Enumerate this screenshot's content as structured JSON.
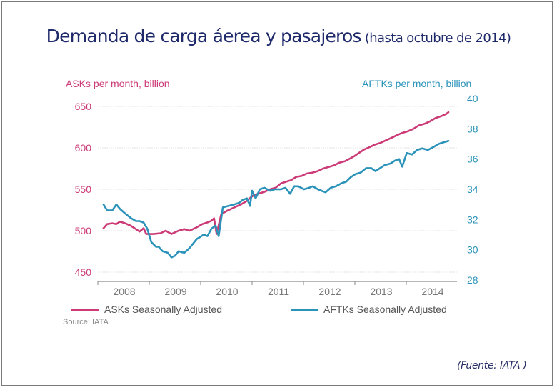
{
  "title": {
    "main": "Demanda de carga áerea y pasajeros",
    "sub": "(hasta octubre de 2014)"
  },
  "footer": {
    "chart_source": "Source: IATA",
    "fuente": "(Fuente: IATA )"
  },
  "colors": {
    "asks": "#cc3b77",
    "aftks": "#2b93b9",
    "title": "#1f2a6b",
    "grid": "#e6e6e6",
    "axis": "#8a8a8a"
  },
  "chart_data": {
    "type": "line",
    "title": "Demanda de carga áerea y pasajeros (hasta octubre de 2014)",
    "xlabel": "",
    "ylabel": "ASKs per month, billion",
    "y2label": "AFTKs per month, billion",
    "xlim": [
      2008,
      2014.85
    ],
    "ylim": [
      450,
      650
    ],
    "y2lim": [
      28,
      40
    ],
    "x_ticks": [
      2008,
      2009,
      2010,
      2011,
      2012,
      2013,
      2014
    ],
    "x_tick_labels": [
      "2008",
      "2009",
      "2010",
      "2011",
      "2012",
      "2013",
      "2014"
    ],
    "y_ticks": [
      650,
      600,
      550,
      500,
      450
    ],
    "y2_ticks": [
      40,
      38,
      36,
      34,
      32,
      30,
      28
    ],
    "grid": true,
    "legend": "bottom",
    "source": "Source: IATA",
    "series": [
      {
        "name": "ASKs Seasonally Adjusted",
        "axis": "left",
        "x": [
          2008.11,
          2008.18,
          2008.28,
          2008.36,
          2008.43,
          2008.53,
          2008.64,
          2008.74,
          2008.81,
          2008.89,
          2008.94,
          2009.08,
          2009.22,
          2009.32,
          2009.43,
          2009.57,
          2009.68,
          2009.78,
          2009.92,
          2010.03,
          2010.13,
          2010.21,
          2010.26,
          2010.31,
          2010.4,
          2010.51,
          2010.65,
          2010.79,
          2010.9,
          2010.97,
          2011.04,
          2011.14,
          2011.24,
          2011.35,
          2011.46,
          2011.56,
          2011.65,
          2011.76,
          2011.86,
          2011.96,
          2012.06,
          2012.17,
          2012.28,
          2012.38,
          2012.49,
          2012.6,
          2012.69,
          2012.81,
          2012.9,
          2012.99,
          2013.08,
          2013.18,
          2013.29,
          2013.39,
          2013.5,
          2013.6,
          2013.71,
          2013.81,
          2013.92,
          2014.03,
          2014.14,
          2014.24,
          2014.35,
          2014.46,
          2014.57,
          2014.67,
          2014.78,
          2014.82
        ],
        "values": [
          503,
          508,
          509,
          508,
          511,
          509,
          506,
          502,
          499,
          503,
          496,
          496,
          497,
          500,
          496,
          500,
          502,
          500,
          504,
          508,
          510,
          512,
          515,
          496,
          520,
          524,
          528,
          532,
          536,
          540,
          543,
          545,
          547,
          550,
          552,
          557,
          559,
          561,
          565,
          566,
          569,
          570,
          572,
          575,
          577,
          579,
          582,
          584,
          587,
          590,
          594,
          598,
          601,
          604,
          606,
          609,
          612,
          615,
          618,
          620,
          623,
          627,
          629,
          632,
          636,
          638,
          641,
          643
        ]
      },
      {
        "name": "AFTKs Seasonally Adjusted",
        "axis": "right",
        "x": [
          2008.11,
          2008.18,
          2008.28,
          2008.36,
          2008.43,
          2008.53,
          2008.64,
          2008.74,
          2008.81,
          2008.89,
          2008.96,
          2009.04,
          2009.13,
          2009.18,
          2009.26,
          2009.36,
          2009.43,
          2009.5,
          2009.57,
          2009.68,
          2009.78,
          2009.92,
          2010.06,
          2010.13,
          2010.21,
          2010.29,
          2010.35,
          2010.43,
          2010.54,
          2010.65,
          2010.75,
          2010.82,
          2010.9,
          2010.96,
          2011.0,
          2011.07,
          2011.15,
          2011.24,
          2011.35,
          2011.44,
          2011.56,
          2011.65,
          2011.74,
          2011.82,
          2011.9,
          2012.01,
          2012.11,
          2012.18,
          2012.28,
          2012.35,
          2012.43,
          2012.53,
          2012.63,
          2012.74,
          2012.83,
          2012.92,
          2013.01,
          2013.11,
          2013.22,
          2013.32,
          2013.4,
          2013.49,
          2013.58,
          2013.69,
          2013.78,
          2013.86,
          2013.92,
          2014.01,
          2014.11,
          2014.21,
          2014.31,
          2014.42,
          2014.53,
          2014.63,
          2014.72,
          2014.82
        ],
        "values": [
          33.0,
          32.6,
          32.6,
          33.0,
          32.7,
          32.4,
          32.1,
          31.9,
          31.9,
          31.8,
          31.4,
          30.5,
          30.2,
          30.2,
          29.9,
          29.8,
          29.5,
          29.6,
          29.9,
          29.8,
          30.1,
          30.7,
          31.0,
          30.9,
          31.4,
          31.6,
          30.9,
          32.8,
          32.9,
          33.0,
          33.1,
          33.3,
          33.4,
          32.9,
          33.9,
          33.4,
          34.0,
          34.1,
          33.9,
          34.0,
          34.0,
          34.1,
          33.7,
          34.2,
          34.2,
          34.0,
          34.1,
          34.2,
          34.0,
          33.9,
          33.8,
          34.1,
          34.2,
          34.4,
          34.5,
          34.8,
          35.0,
          35.1,
          35.4,
          35.4,
          35.2,
          35.4,
          35.6,
          35.7,
          35.9,
          36.0,
          35.5,
          36.4,
          36.3,
          36.6,
          36.7,
          36.6,
          36.8,
          37.0,
          37.1,
          37.2
        ]
      }
    ]
  }
}
